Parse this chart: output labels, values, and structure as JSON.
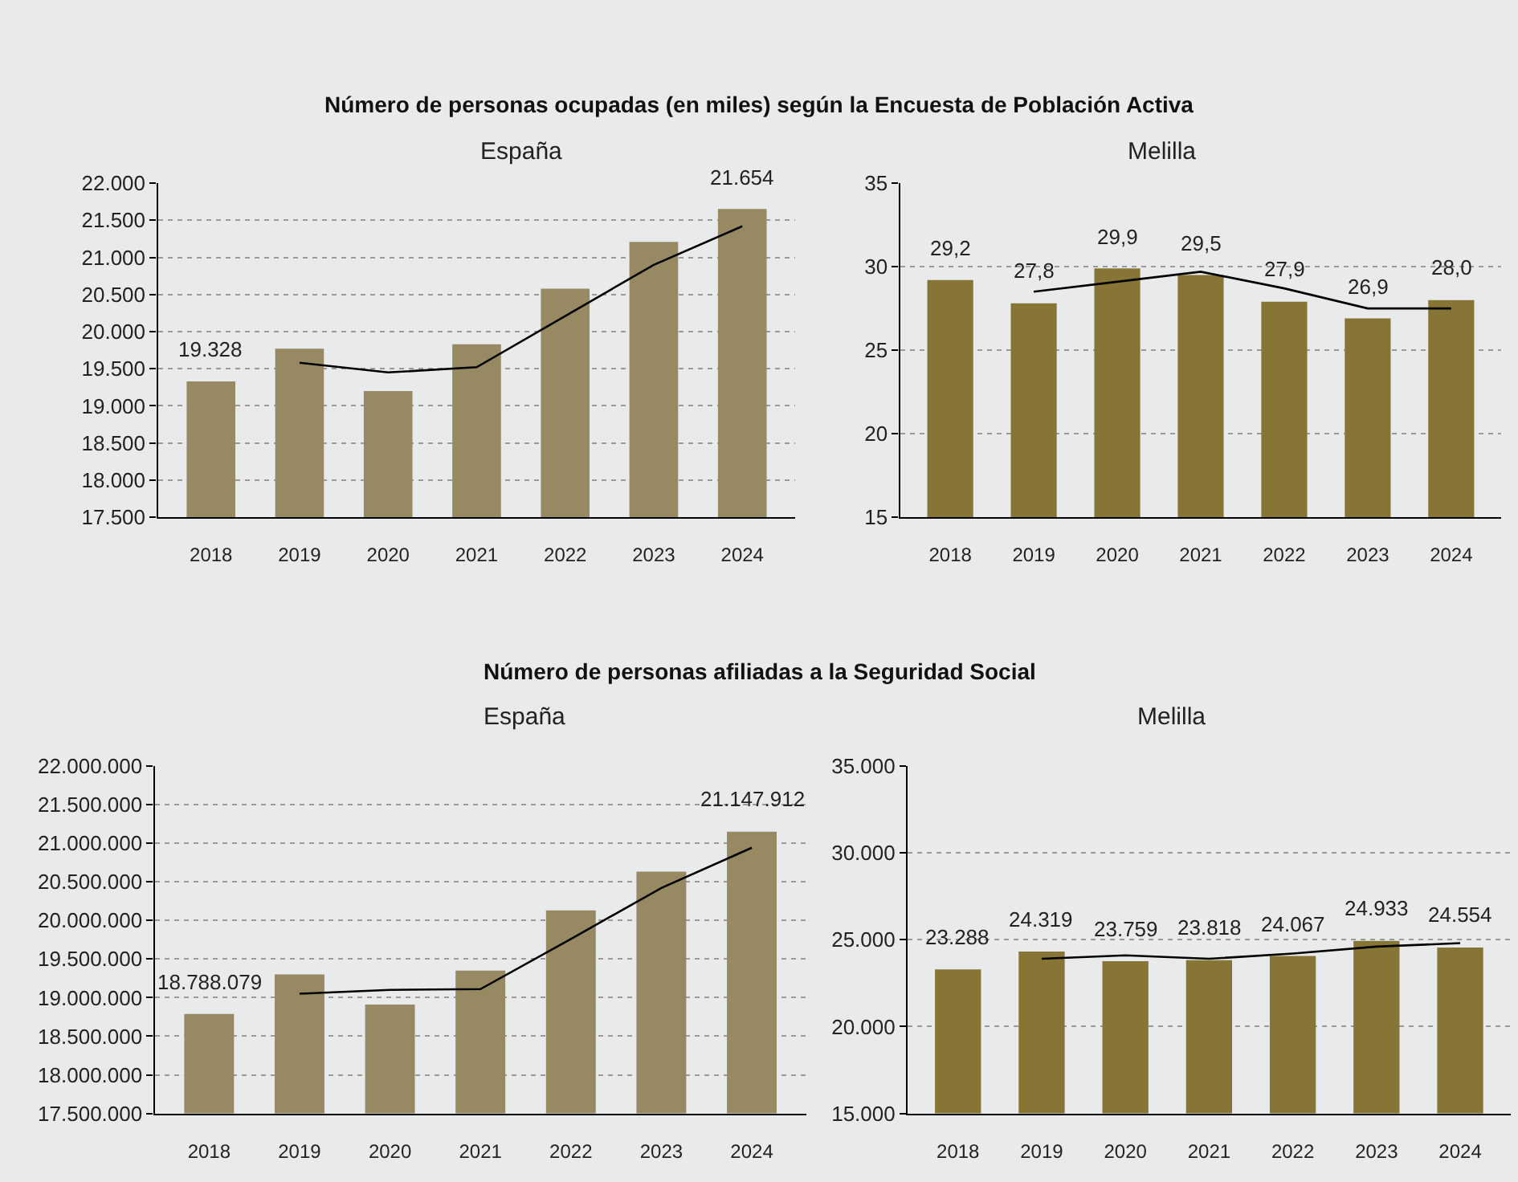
{
  "chart_data": [
    {
      "type": "bar",
      "title": "Número de personas ocupadas (en miles) según la Encuesta de Población Activa",
      "subtitle": "España",
      "categories": [
        "2018",
        "2019",
        "2020",
        "2021",
        "2022",
        "2023",
        "2024"
      ],
      "series": [
        {
          "color": "#978962",
          "values": [
            19328,
            19770,
            19200,
            19830,
            20580,
            21210,
            21654
          ],
          "value_labels": [
            "19.328",
            null,
            null,
            null,
            null,
            null,
            "21.654"
          ]
        },
        {
          "type": "line",
          "color": "#000000",
          "values": [
            null,
            19580,
            19450,
            19520,
            20210,
            20900,
            21420
          ]
        }
      ],
      "ylim": [
        17500,
        22000
      ],
      "yticks": [
        {
          "value": 17500,
          "label": "17.500"
        },
        {
          "value": 18000,
          "label": "18.000"
        },
        {
          "value": 18500,
          "label": "18.500"
        },
        {
          "value": 19000,
          "label": "19.000"
        },
        {
          "value": 19500,
          "label": "19.500"
        },
        {
          "value": 20000,
          "label": "20.000"
        },
        {
          "value": 20500,
          "label": "20.500"
        },
        {
          "value": 21000,
          "label": "21.000"
        },
        {
          "value": 21500,
          "label": "21.500"
        },
        {
          "value": 22000,
          "label": "22.000"
        }
      ],
      "grid": "y"
    },
    {
      "type": "bar",
      "subtitle": "Melilla",
      "categories": [
        "2018",
        "2019",
        "2020",
        "2021",
        "2022",
        "2023",
        "2024"
      ],
      "series": [
        {
          "color": "#877535",
          "values": [
            29.2,
            27.8,
            29.9,
            29.5,
            27.9,
            26.9,
            28.0
          ],
          "value_labels": [
            "29,2",
            "27,8",
            "29,9",
            "29,5",
            "27,9",
            "26,9",
            "28,0"
          ]
        },
        {
          "type": "line",
          "color": "#000000",
          "values": [
            null,
            28.5,
            29.1,
            29.7,
            28.7,
            27.5,
            27.5
          ]
        }
      ],
      "ylim": [
        15,
        35
      ],
      "yticks": [
        15,
        20,
        25,
        30,
        35
      ],
      "grid": "y"
    },
    {
      "type": "bar",
      "title": "Número de personas afiliadas a la Seguridad Social",
      "subtitle": "España",
      "categories": [
        "2018",
        "2019",
        "2020",
        "2021",
        "2022",
        "2023",
        "2024"
      ],
      "series": [
        {
          "color": "#978962",
          "values": [
            18788079,
            19300000,
            18910000,
            19350000,
            20130000,
            20630000,
            21147912
          ],
          "value_labels": [
            "18.788.079",
            null,
            null,
            null,
            null,
            null,
            "21.147.912"
          ]
        },
        {
          "type": "line",
          "color": "#000000",
          "values": [
            null,
            19050000,
            19100000,
            19110000,
            19760000,
            20420000,
            20940000
          ]
        }
      ],
      "ylim": [
        17500000,
        22000000
      ],
      "yticks": [
        {
          "value": 17500000,
          "label": "17.500.000"
        },
        {
          "value": 18000000,
          "label": "18.000.000"
        },
        {
          "value": 18500000,
          "label": "18.500.000"
        },
        {
          "value": 19000000,
          "label": "19.000.000"
        },
        {
          "value": 19500000,
          "label": "19.500.000"
        },
        {
          "value": 20000000,
          "label": "20.000.000"
        },
        {
          "value": 20500000,
          "label": "20.500.000"
        },
        {
          "value": 21000000,
          "label": "21.000.000"
        },
        {
          "value": 21500000,
          "label": "21.500.000"
        },
        {
          "value": 22000000,
          "label": "22.000.000"
        }
      ],
      "grid": "y"
    },
    {
      "type": "bar",
      "subtitle": "Melilla",
      "categories": [
        "2018",
        "2019",
        "2020",
        "2021",
        "2022",
        "2023",
        "2024"
      ],
      "series": [
        {
          "color": "#877535",
          "values": [
            23288,
            24319,
            23759,
            23818,
            24067,
            24933,
            24554
          ],
          "value_labels": [
            "23.288",
            "24.319",
            "23.759",
            "23.818",
            "24.067",
            "24.933",
            "24.554"
          ]
        },
        {
          "type": "line",
          "color": "#000000",
          "values": [
            null,
            23900,
            24100,
            23900,
            24200,
            24600,
            24800
          ]
        }
      ],
      "ylim": [
        15000,
        35000
      ],
      "yticks": [
        {
          "value": 15000,
          "label": "15.000"
        },
        {
          "value": 20000,
          "label": "20.000"
        },
        {
          "value": 25000,
          "label": "25.000"
        },
        {
          "value": 30000,
          "label": "30.000"
        },
        {
          "value": 35000,
          "label": "35.000"
        }
      ],
      "grid": "y"
    }
  ]
}
